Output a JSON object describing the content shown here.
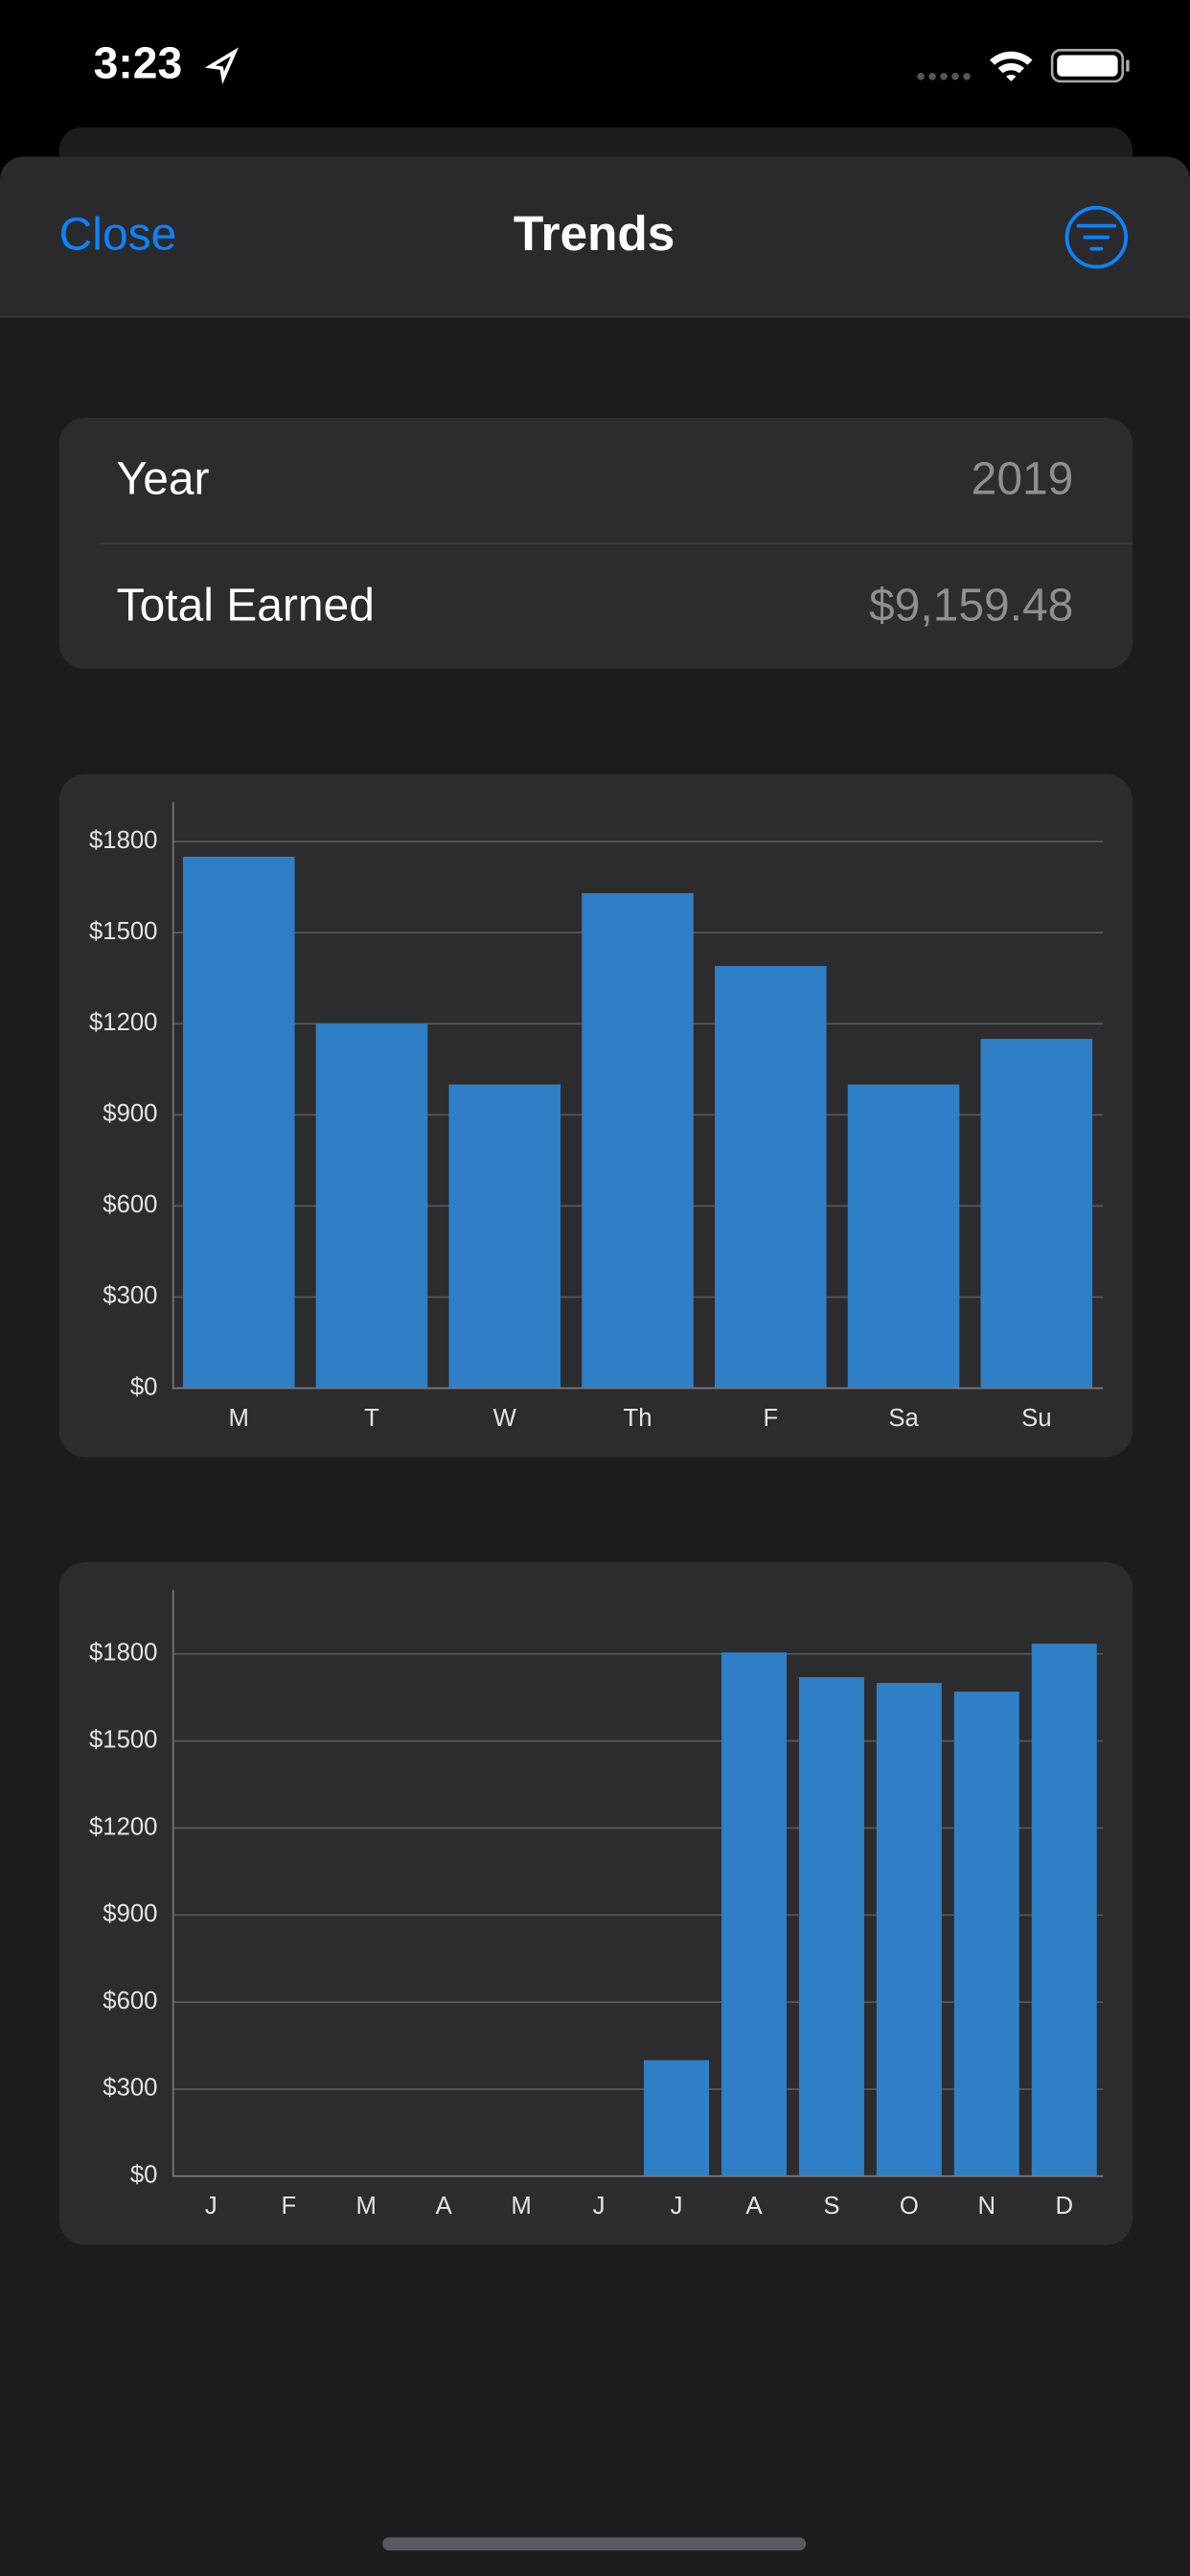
{
  "status_bar": {
    "time": "3:23"
  },
  "header": {
    "left_button": "Close",
    "title": "Trends"
  },
  "summary": {
    "rows": [
      {
        "label": "Year",
        "value": "2019"
      },
      {
        "label": "Total Earned",
        "value": "$9,159.48"
      }
    ]
  },
  "chart_data": [
    {
      "type": "bar",
      "categories": [
        "M",
        "T",
        "W",
        "Th",
        "F",
        "Sa",
        "Su"
      ],
      "values": [
        1750,
        1200,
        1000,
        1630,
        1390,
        1000,
        1150
      ],
      "color": "#2f7fc6",
      "ylim": [
        0,
        1930
      ],
      "yticks": [
        {
          "value": 0,
          "label": "$0"
        },
        {
          "value": 300,
          "label": "$300"
        },
        {
          "value": 600,
          "label": "$600"
        },
        {
          "value": 900,
          "label": "$900"
        },
        {
          "value": 1200,
          "label": "$1200"
        },
        {
          "value": 1500,
          "label": "$1500"
        },
        {
          "value": 1800,
          "label": "$1800"
        }
      ],
      "grid": true
    },
    {
      "type": "bar",
      "categories": [
        "J",
        "F",
        "M",
        "A",
        "M",
        "J",
        "J",
        "A",
        "S",
        "O",
        "N",
        "D"
      ],
      "values": [
        0,
        0,
        0,
        0,
        0,
        0,
        400,
        1805,
        1720,
        1700,
        1670,
        1835
      ],
      "color": "#2f7fc6",
      "ylim": [
        0,
        2020
      ],
      "yticks": [
        {
          "value": 0,
          "label": "$0"
        },
        {
          "value": 300,
          "label": "$300"
        },
        {
          "value": 600,
          "label": "$600"
        },
        {
          "value": 900,
          "label": "$900"
        },
        {
          "value": 1200,
          "label": "$1200"
        },
        {
          "value": 1500,
          "label": "$1500"
        },
        {
          "value": 1800,
          "label": "$1800"
        }
      ],
      "grid": true
    }
  ]
}
